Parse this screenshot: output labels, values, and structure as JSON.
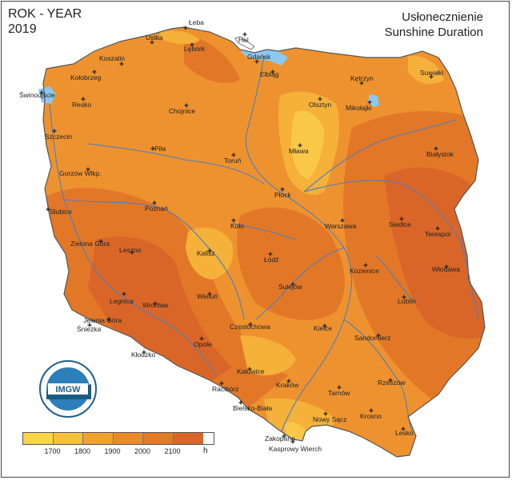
{
  "header": {
    "title_left_line1": "ROK - YEAR",
    "title_left_line2": "2019",
    "title_right_line1": "Usłonecznienie",
    "title_right_line2": "Sunshine Duration"
  },
  "logo": {
    "text": "IMGW",
    "icon": "imgw-logo-icon"
  },
  "legend": {
    "ticks": [
      "1700",
      "1800",
      "1900",
      "2000",
      "2100"
    ],
    "unit": "h",
    "colors": [
      "#f9d548",
      "#f7c03a",
      "#f0a22f",
      "#eb8b28",
      "#e37a24",
      "#d96628"
    ]
  },
  "map_colors": {
    "base": "#ee9230",
    "light": "#f5b13a",
    "lightest": "#f9c849",
    "dark": "#e27827",
    "darkest": "#d86628",
    "water": "#8cc8f0",
    "river": "#4a7fc0",
    "border": "#555555"
  },
  "cities": [
    {
      "name": "Łeba"
    },
    {
      "name": "Hel"
    },
    {
      "name": "Ustka"
    },
    {
      "name": "Lębork"
    },
    {
      "name": "Koszalin"
    },
    {
      "name": "Gdańsk"
    },
    {
      "name": "Elbląg"
    },
    {
      "name": "Kętrzyn"
    },
    {
      "name": "Suwałki"
    },
    {
      "name": "Kołobrzeg"
    },
    {
      "name": "Świnoujście"
    },
    {
      "name": "Resko"
    },
    {
      "name": "Chojnice"
    },
    {
      "name": "Olsztyn"
    },
    {
      "name": "Mikołajki"
    },
    {
      "name": "Szczecin"
    },
    {
      "name": "Piła"
    },
    {
      "name": "Toruń"
    },
    {
      "name": "Mława"
    },
    {
      "name": "Białystok"
    },
    {
      "name": "Gorzów Wlkp."
    },
    {
      "name": "Płock"
    },
    {
      "name": "Słubice"
    },
    {
      "name": "Poznań"
    },
    {
      "name": "Koło"
    },
    {
      "name": "Warszawa"
    },
    {
      "name": "Siedlce"
    },
    {
      "name": "Terespol"
    },
    {
      "name": "Zielona Góra"
    },
    {
      "name": "Leszno"
    },
    {
      "name": "Kalisz"
    },
    {
      "name": "Łódź"
    },
    {
      "name": "Kozienice"
    },
    {
      "name": "Włodawa"
    },
    {
      "name": "Sulejów"
    },
    {
      "name": "Legnica"
    },
    {
      "name": "Wrocław"
    },
    {
      "name": "Wieluń"
    },
    {
      "name": "Lublin"
    },
    {
      "name": "Jelenia Góra"
    },
    {
      "name": "Śnieżka"
    },
    {
      "name": "Częstochowa"
    },
    {
      "name": "Kielce"
    },
    {
      "name": "Opole"
    },
    {
      "name": "Sandomierz"
    },
    {
      "name": "Kłodzko"
    },
    {
      "name": "Katowice"
    },
    {
      "name": "Racibórz"
    },
    {
      "name": "Kraków"
    },
    {
      "name": "Tarnów"
    },
    {
      "name": "Rzeszów"
    },
    {
      "name": "Bielsko-Biała"
    },
    {
      "name": "Nowy Sącz"
    },
    {
      "name": "Krosno"
    },
    {
      "name": "Lesko"
    },
    {
      "name": "Zakopane"
    },
    {
      "name": "Kasprowy Wierch"
    }
  ]
}
